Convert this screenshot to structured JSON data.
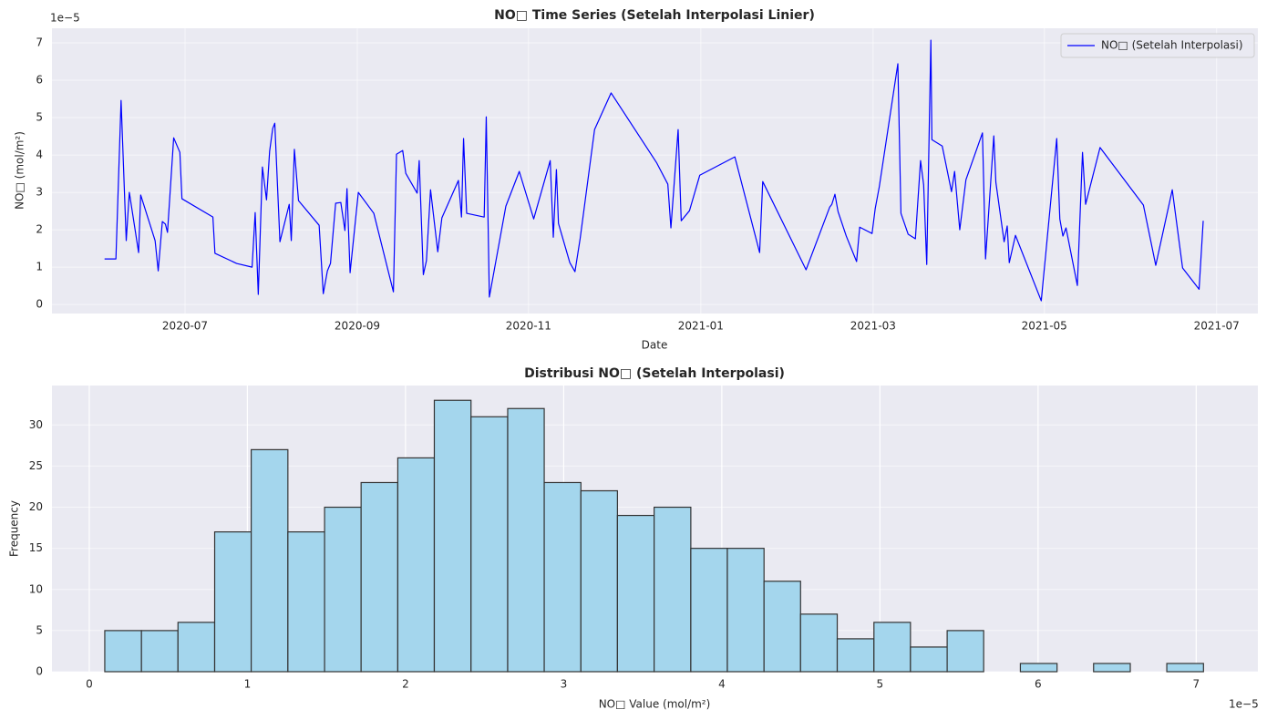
{
  "chart_data": [
    {
      "type": "line",
      "title": "NO□ Time Series (Setelah Interpolasi Linier)",
      "x_label": "Date",
      "y_label": "NO□ (mol/m²)",
      "y_offset_label": "1e−5",
      "x": [
        2020.422,
        2020.433,
        2020.438,
        2020.443,
        2020.446,
        2020.455,
        2020.457,
        2020.471,
        2020.474,
        2020.478,
        2020.481,
        2020.483,
        2020.489,
        2020.495,
        2020.497,
        2020.527,
        2020.529,
        2020.55,
        2020.565,
        2020.568,
        2020.571,
        2020.575,
        2020.579,
        2020.582,
        2020.585,
        2020.587,
        2020.592,
        2020.601,
        2020.603,
        2020.606,
        2020.61,
        2020.63,
        2020.634,
        2020.638,
        2020.641,
        2020.646,
        2020.651,
        2020.655,
        2020.657,
        2020.66,
        2020.668,
        2020.683,
        2020.702,
        2020.705,
        2020.711,
        2020.714,
        2020.725,
        2020.727,
        2020.731,
        2020.734,
        2020.738,
        2020.745,
        2020.749,
        2020.765,
        2020.768,
        2020.77,
        2020.773,
        2020.79,
        2020.792,
        2020.795,
        2020.811,
        2020.824,
        2020.838,
        2020.854,
        2020.857,
        2020.86,
        2020.862,
        2020.873,
        2020.878,
        2020.883,
        2020.897,
        2020.913,
        2020.957,
        2020.968,
        2020.971,
        2020.978,
        2020.981,
        2020.989,
        2020.999,
        2021.033,
        2021.057,
        2021.06,
        2021.102,
        2021.125,
        2021.127,
        2021.13,
        2021.133,
        2021.141,
        2021.151,
        2021.154,
        2021.166,
        2021.169,
        2021.173,
        2021.191,
        2021.194,
        2021.201,
        2021.208,
        2021.213,
        2021.216,
        2021.219,
        2021.223,
        2021.224,
        2021.234,
        2021.243,
        2021.246,
        2021.251,
        2021.257,
        2021.273,
        2021.276,
        2021.284,
        2021.286,
        2021.294,
        2021.297,
        2021.299,
        2021.305,
        2021.33,
        2021.345,
        2021.348,
        2021.351,
        2021.354,
        2021.365,
        2021.37,
        2021.373,
        2021.387,
        2021.429,
        2021.441,
        2021.457,
        2021.467,
        2021.483,
        2021.487
      ],
      "series": [
        {
          "name": "NO□ (Setelah Interpolasi)",
          "color": "#0000ff",
          "values": [
            1.22,
            1.22,
            5.46,
            1.71,
            3.0,
            1.39,
            2.93,
            1.71,
            0.9,
            2.22,
            2.15,
            1.93,
            4.46,
            4.07,
            2.83,
            2.34,
            1.37,
            1.1,
            1.0,
            2.46,
            0.27,
            3.68,
            2.8,
            4.1,
            4.71,
            4.85,
            1.68,
            2.68,
            1.71,
            4.15,
            2.78,
            2.12,
            0.29,
            0.9,
            1.1,
            2.71,
            2.73,
            1.98,
            3.1,
            0.85,
            3.0,
            2.44,
            0.34,
            4.02,
            4.12,
            3.51,
            2.98,
            3.85,
            0.8,
            1.17,
            3.07,
            1.41,
            2.32,
            3.32,
            2.34,
            4.44,
            2.44,
            2.34,
            5.02,
            0.2,
            2.63,
            3.56,
            2.29,
            3.85,
            1.8,
            3.61,
            2.17,
            1.12,
            0.88,
            1.76,
            4.68,
            5.66,
            3.8,
            3.22,
            2.05,
            4.68,
            2.24,
            2.51,
            3.46,
            3.95,
            1.39,
            3.29,
            0.93,
            2.61,
            2.68,
            2.95,
            2.49,
            1.83,
            1.15,
            2.07,
            1.9,
            2.56,
            3.15,
            6.44,
            2.44,
            1.88,
            1.76,
            3.85,
            3.2,
            1.07,
            7.07,
            4.41,
            4.24,
            3.02,
            3.56,
            2.0,
            3.34,
            4.59,
            1.22,
            4.51,
            3.27,
            1.68,
            2.1,
            1.12,
            1.85,
            0.1,
            4.44,
            2.29,
            1.83,
            2.05,
            0.51,
            4.07,
            2.68,
            4.2,
            2.66,
            1.05,
            3.07,
            0.98,
            0.41,
            2.24
          ]
        }
      ],
      "xlim": [
        2020.371,
        2021.54
      ],
      "xticks": [
        {
          "value": 2020.5,
          "label": "2020-07"
        },
        {
          "value": 2020.667,
          "label": "2020-09"
        },
        {
          "value": 2020.833,
          "label": "2020-11"
        },
        {
          "value": 2021.0,
          "label": "2021-01"
        },
        {
          "value": 2021.167,
          "label": "2021-03"
        },
        {
          "value": 2021.333,
          "label": "2021-05"
        },
        {
          "value": 2021.5,
          "label": "2021-07"
        }
      ],
      "ylim": [
        -0.24,
        7.39
      ],
      "yticks": [
        0,
        1,
        2,
        3,
        4,
        5,
        6,
        7
      ],
      "grid": true,
      "legend": "upper right"
    },
    {
      "type": "histogram",
      "title": "Distribusi NO□ (Setelah Interpolasi)",
      "x_label": "NO□ Value (mol/m²)",
      "y_label": "Frequency",
      "x_offset_label": "1e−5",
      "bins": [
        0.098,
        0.33,
        0.561,
        0.793,
        1.024,
        1.256,
        1.488,
        1.719,
        1.951,
        2.182,
        2.414,
        2.646,
        2.877,
        3.109,
        3.34,
        3.572,
        3.804,
        4.035,
        4.267,
        4.498,
        4.73,
        4.962,
        5.193,
        5.425,
        5.656,
        5.888,
        6.12,
        6.351,
        6.583,
        6.814,
        7.046
      ],
      "counts": [
        5,
        5,
        6,
        17,
        27,
        17,
        20,
        23,
        26,
        33,
        31,
        32,
        23,
        22,
        19,
        20,
        15,
        15,
        11,
        7,
        4,
        6,
        3,
        5,
        0,
        1,
        0,
        1,
        0,
        1
      ],
      "color": "#a4d6ed",
      "edgecolor": "#333333",
      "xlim": [
        -0.236,
        7.39
      ],
      "xticks": [
        0,
        1,
        2,
        3,
        4,
        5,
        6,
        7
      ],
      "ylim": [
        0,
        34.8
      ],
      "yticks": [
        0,
        5,
        10,
        15,
        20,
        25,
        30
      ],
      "grid": true
    }
  ]
}
